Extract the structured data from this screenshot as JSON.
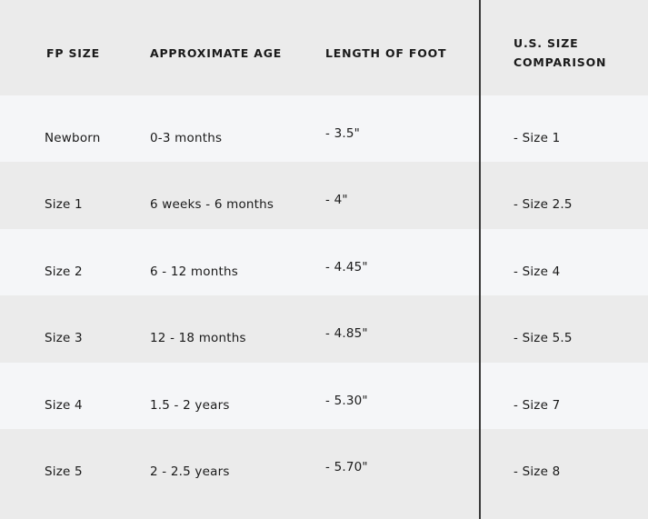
{
  "headers": [
    "FP SIZE",
    "APPROXIMATE AGE",
    "LENGTH OF FOOT",
    "U.S. SIZE COMPARISON"
  ],
  "rows": [
    [
      "Newborn",
      "0-3 months",
      "- 3.5\"",
      "- Size 1"
    ],
    [
      "Size 1",
      "6 weeks - 6 months",
      "- 4\"",
      "- Size 2.5"
    ],
    [
      "Size 2",
      "6 - 12 months",
      "- 4.45\"",
      "- Size 4"
    ],
    [
      "Size 3",
      "12 - 18 months",
      "- 4.85\"",
      "- Size 5.5"
    ],
    [
      "Size 4",
      "1.5 - 2 years",
      "- 5.30\"",
      "- Size 7"
    ],
    [
      "Size 5",
      "2 - 2.5 years",
      "- 5.70\"",
      "- Size 8"
    ]
  ],
  "colors": {
    "header_bg": "#ebebeb",
    "row_light": "#f5f6f8",
    "row_gray": "#ebebeb",
    "divider": "#3a3a3a"
  }
}
